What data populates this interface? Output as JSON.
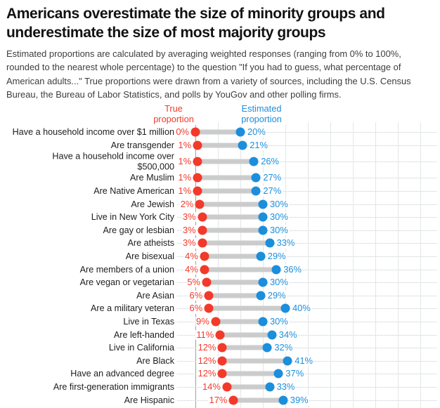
{
  "header": {
    "title": "Americans overestimate the size of minority groups and\nunderestimate the size of most majority groups",
    "subtitle": "Estimated proportions are calculated by averaging weighted responses (ranging from 0% to 100%,\nrounded to the nearest whole percentage) to the question \"If you had to guess, what percentage of\nAmerican adults...\" True proportions were drawn from a variety of sources, including the U.S. Census\nBureau, the Bureau of Labor Statistics, and polls by YouGov and other polling firms."
  },
  "legend": {
    "true_label": "True\nproportion",
    "estimated_label": "Estimated\nproportion"
  },
  "colors": {
    "true": "#f2392a",
    "estimated": "#1b8edc",
    "connector": "#cccccc",
    "axis_line": "#9ba1a4",
    "gridline": "#e2e6e8",
    "dotted_line": "#c3c9cc",
    "title_text": "#121212",
    "subtitle_text": "#3d3d3d"
  },
  "chart_data": {
    "type": "scatter",
    "variant": "dumbbell",
    "orientation": "horizontal",
    "unit": "%",
    "xlim": [
      0,
      100
    ],
    "gridline_step_pct": 10,
    "grid": true,
    "legend_position": "top",
    "title": "Americans overestimate the size of minority groups and underestimate the size of most majority groups",
    "xlabel": "",
    "ylabel": "",
    "categories": [
      "Have a household income over $1 million",
      "Are transgender",
      "Have a household income over\n$500,000",
      "Are Muslim",
      "Are Native American",
      "Are Jewish",
      "Live in New York City",
      "Are gay or lesbian",
      "Are atheists",
      "Are bisexual",
      "Are members of a union",
      "Are vegan or vegetarian",
      "Are Asian",
      "Are a military veteran",
      "Live in Texas",
      "Are left-handed",
      "Live in California",
      "Are Black",
      "Have an advanced degree",
      "Are first-generation immigrants",
      "Are Hispanic"
    ],
    "series": [
      {
        "name": "True proportion",
        "color": "#f2392a",
        "values": [
          0,
          1,
          1,
          1,
          1,
          2,
          3,
          3,
          3,
          4,
          4,
          5,
          6,
          6,
          9,
          11,
          12,
          12,
          12,
          14,
          17
        ],
        "labels": [
          "0%",
          "1%",
          "1%",
          "1%",
          "1%",
          "2%",
          "3%",
          "3%",
          "3%",
          "4%",
          "4%",
          "5%",
          "6%",
          "6%",
          "9%",
          "11%",
          "12%",
          "12%",
          "12%",
          "14%",
          "17%"
        ]
      },
      {
        "name": "Estimated proportion",
        "color": "#1b8edc",
        "values": [
          20,
          21,
          26,
          27,
          27,
          30,
          30,
          30,
          33,
          29,
          36,
          30,
          29,
          40,
          30,
          34,
          32,
          41,
          37,
          33,
          39
        ],
        "labels": [
          "20%",
          "21%",
          "26%",
          "27%",
          "27%",
          "30%",
          "30%",
          "30%",
          "33%",
          "29%",
          "36%",
          "30%",
          "29%",
          "40%",
          "30%",
          "34%",
          "32%",
          "41%",
          "37%",
          "33%",
          "39%"
        ]
      }
    ]
  }
}
